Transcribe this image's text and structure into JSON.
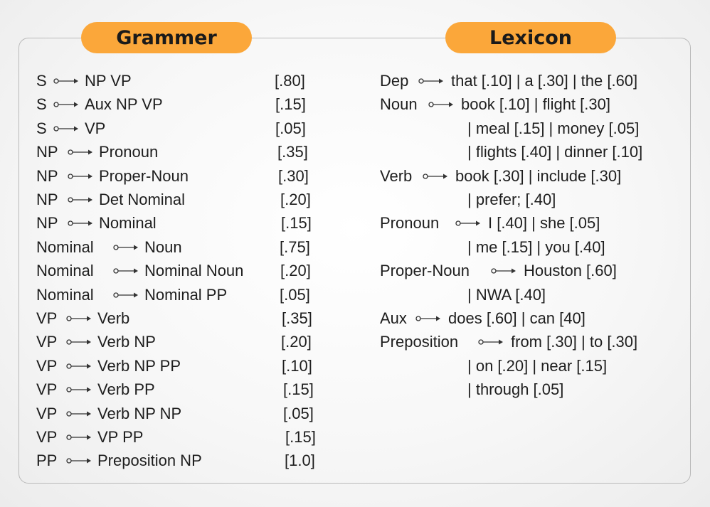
{
  "headers": {
    "grammar": "Grammer",
    "lexicon": "Lexicon"
  },
  "colors": {
    "accent": "#fba73a",
    "frame_border": "#b9b9b9",
    "text": "#1e1e1e"
  },
  "grammar_rules": [
    {
      "lhs": "S",
      "rhs": "NP VP",
      "prob": "[.80]"
    },
    {
      "lhs": "S",
      "rhs": "Aux NP VP",
      "prob": "[.15]"
    },
    {
      "lhs": "S",
      "rhs": "VP",
      "prob": "[.05]"
    },
    {
      "lhs": "NP",
      "rhs": "Pronoun",
      "prob": "[.35]"
    },
    {
      "lhs": "NP",
      "rhs": "Proper-Noun",
      "prob": "[.30]"
    },
    {
      "lhs": "NP",
      "rhs": "Det Nominal",
      "prob": "[.20]"
    },
    {
      "lhs": "NP",
      "rhs": "Nominal",
      "prob": "[.15]"
    },
    {
      "lhs": "Nominal",
      "rhs": "Noun",
      "prob": "[.75]"
    },
    {
      "lhs": "Nominal",
      "rhs": "Nominal Noun",
      "prob": "[.20]"
    },
    {
      "lhs": "Nominal",
      "rhs": "Nominal PP",
      "prob": "[.05]"
    },
    {
      "lhs": "VP",
      "rhs": "Verb",
      "prob": "[.35]"
    },
    {
      "lhs": "VP",
      "rhs": "Verb NP",
      "prob": "[.20]"
    },
    {
      "lhs": "VP",
      "rhs": "Verb NP PP",
      "prob": "[.10]"
    },
    {
      "lhs": "VP",
      "rhs": "Verb PP",
      "prob": "[.15]"
    },
    {
      "lhs": "VP",
      "rhs": "Verb NP NP",
      "prob": "[.05]"
    },
    {
      "lhs": "VP",
      "rhs": "VP PP",
      "prob": "[.15]"
    },
    {
      "lhs": "PP",
      "rhs": "Preposition NP",
      "prob": "[1.0]"
    }
  ],
  "lexicon_entries": [
    {
      "category": "Dep",
      "lines": [
        "that [.10] | a [.30] | the [.60]"
      ]
    },
    {
      "category": "Noun",
      "lines": [
        "book [.10] | flight [.30]",
        "| meal [.15] | money [.05]",
        "| flights [.40] | dinner [.10]"
      ]
    },
    {
      "category": "Verb",
      "lines": [
        "book [.30] | include [.30]",
        "| prefer; [.40]"
      ]
    },
    {
      "category": "Pronoun",
      "lines": [
        "I [.40] | she [.05]",
        "| me [.15] | you [.40]"
      ]
    },
    {
      "category": "Proper-Noun",
      "lines": [
        "Houston [.60]",
        "| NWA [.40]"
      ]
    },
    {
      "category": "Aux",
      "lines": [
        "does [.60] | can [40]"
      ]
    },
    {
      "category": "Preposition",
      "lines": [
        "from [.30] | to [.30]",
        "| on [.20] | near [.15]",
        "| through [.05]"
      ]
    }
  ]
}
